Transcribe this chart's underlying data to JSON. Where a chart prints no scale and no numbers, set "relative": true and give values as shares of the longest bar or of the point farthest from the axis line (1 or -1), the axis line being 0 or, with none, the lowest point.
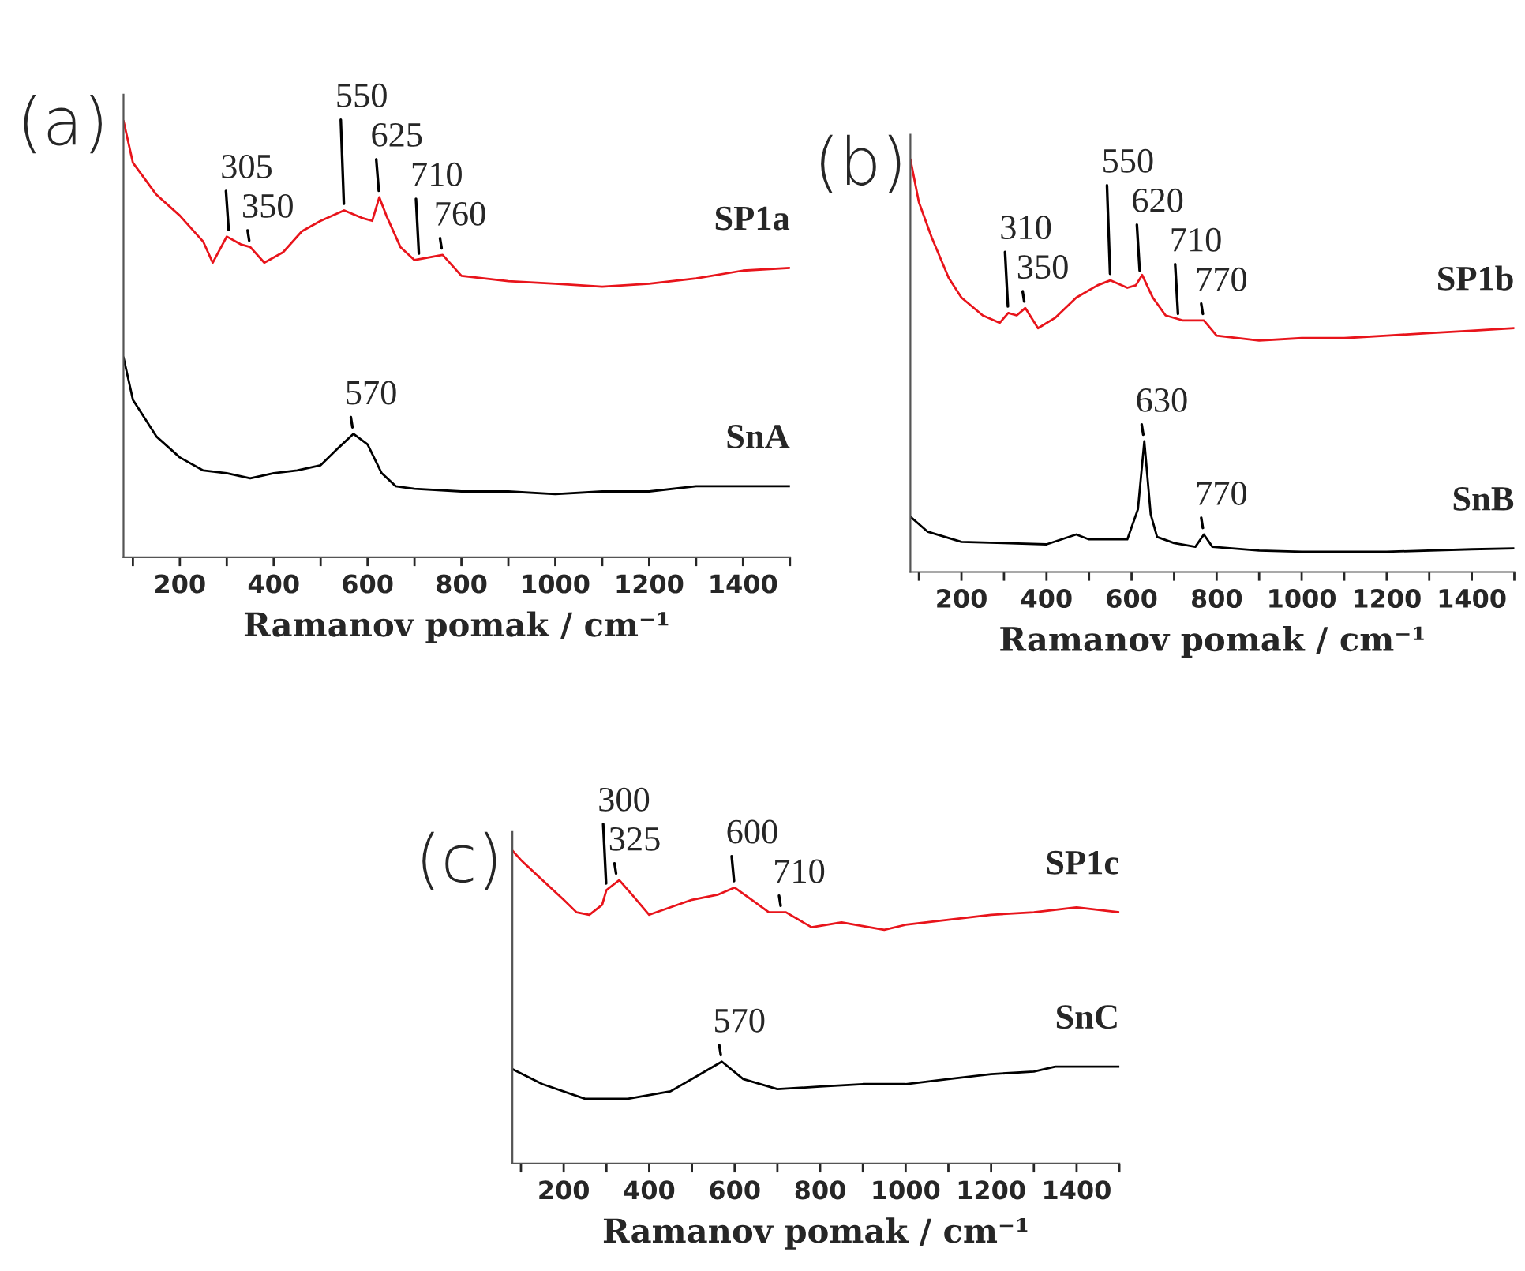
{
  "chart_data": [
    {
      "type": "line",
      "title": "(a)",
      "xlabel": "Ramanov pomak / cm⁻¹",
      "relative": true,
      "xlim": [
        80,
        1500
      ],
      "xticks": [
        {
          "value": 100,
          "label": null
        },
        200,
        {
          "value": 300,
          "label": null
        },
        400,
        {
          "value": 500,
          "label": null
        },
        600,
        {
          "value": 700,
          "label": null
        },
        800,
        {
          "value": 900,
          "label": null
        },
        1000,
        {
          "value": 1100,
          "label": null
        },
        1200,
        {
          "value": 1300,
          "label": null
        },
        1400,
        {
          "value": 1500,
          "label": null
        }
      ],
      "series": [
        {
          "name": "SP1a",
          "color": "#e8141b",
          "x": [
            80,
            100,
            150,
            200,
            250,
            270,
            300,
            330,
            350,
            380,
            420,
            460,
            500,
            550,
            590,
            610,
            625,
            640,
            670,
            700,
            760,
            800,
            900,
            1000,
            1100,
            1200,
            1300,
            1400,
            1500
          ],
          "values": [
            1.0,
            0.904,
            0.831,
            0.783,
            0.723,
            0.675,
            0.735,
            0.717,
            0.711,
            0.675,
            0.699,
            0.747,
            0.771,
            0.795,
            0.777,
            0.771,
            0.825,
            0.783,
            0.711,
            0.681,
            0.693,
            0.645,
            0.633,
            0.627,
            0.62,
            0.627,
            0.639,
            0.657,
            0.663
          ]
        },
        {
          "name": "SnA",
          "color": "#000000",
          "x": [
            80,
            100,
            150,
            200,
            250,
            300,
            350,
            400,
            450,
            500,
            540,
            570,
            600,
            630,
            660,
            700,
            800,
            900,
            1000,
            1100,
            1200,
            1300,
            1400,
            1500
          ],
          "values": [
            0.458,
            0.361,
            0.277,
            0.229,
            0.199,
            0.193,
            0.181,
            0.193,
            0.199,
            0.211,
            0.253,
            0.283,
            0.259,
            0.193,
            0.163,
            0.157,
            0.151,
            0.151,
            0.145,
            0.151,
            0.151,
            0.163,
            0.163,
            0.163
          ]
        }
      ],
      "annotations": [
        {
          "text": "305",
          "x": 305,
          "y": 0.735
        },
        {
          "text": "350",
          "x": 350,
          "y": 0.711
        },
        {
          "text": "550",
          "x": 550,
          "y": 0.795
        },
        {
          "text": "625",
          "x": 625,
          "y": 0.825
        },
        {
          "text": "710",
          "x": 710,
          "y": 0.681
        },
        {
          "text": "760",
          "x": 760,
          "y": 0.693
        },
        {
          "text": "570",
          "x": 570,
          "y": 0.283
        }
      ]
    },
    {
      "type": "line",
      "title": "(b)",
      "xlabel": "Ramanov pomak / cm⁻¹",
      "relative": true,
      "xlim": [
        80,
        1500
      ],
      "xticks": [
        {
          "value": 100,
          "label": null
        },
        200,
        {
          "value": 300,
          "label": null
        },
        400,
        {
          "value": 500,
          "label": null
        },
        600,
        {
          "value": 700,
          "label": null
        },
        800,
        {
          "value": 900,
          "label": null
        },
        1000,
        {
          "value": 1100,
          "label": null
        },
        1200,
        {
          "value": 1300,
          "label": null
        },
        1400,
        {
          "value": 1500,
          "label": null
        }
      ],
      "series": [
        {
          "name": "SP1b",
          "color": "#e8141b",
          "x": [
            80,
            100,
            130,
            170,
            200,
            250,
            290,
            310,
            330,
            350,
            380,
            420,
            470,
            520,
            550,
            590,
            610,
            625,
            650,
            680,
            720,
            770,
            800,
            900,
            1000,
            1100,
            1200,
            1300,
            1400,
            1500
          ],
          "values": [
            1.0,
            0.896,
            0.811,
            0.713,
            0.665,
            0.622,
            0.604,
            0.628,
            0.622,
            0.64,
            0.591,
            0.616,
            0.665,
            0.695,
            0.707,
            0.689,
            0.695,
            0.72,
            0.665,
            0.622,
            0.61,
            0.61,
            0.573,
            0.561,
            0.567,
            0.567,
            0.573,
            0.579,
            0.585,
            0.591
          ]
        },
        {
          "name": "SnB",
          "color": "#000000",
          "x": [
            80,
            120,
            200,
            300,
            400,
            470,
            500,
            590,
            615,
            630,
            645,
            660,
            700,
            750,
            770,
            790,
            900,
            1000,
            1200,
            1400,
            1500
          ],
          "values": [
            0.134,
            0.098,
            0.073,
            0.07,
            0.067,
            0.091,
            0.079,
            0.079,
            0.152,
            0.317,
            0.14,
            0.085,
            0.07,
            0.061,
            0.091,
            0.061,
            0.052,
            0.049,
            0.049,
            0.055,
            0.057
          ]
        }
      ],
      "annotations": [
        {
          "text": "310",
          "x": 310,
          "y": 0.628
        },
        {
          "text": "350",
          "x": 350,
          "y": 0.64
        },
        {
          "text": "550",
          "x": 550,
          "y": 0.707
        },
        {
          "text": "620",
          "x": 620,
          "y": 0.715
        },
        {
          "text": "710",
          "x": 710,
          "y": 0.61
        },
        {
          "text": "770",
          "x": 770,
          "y": 0.61
        },
        {
          "text": "630",
          "x": 630,
          "y": 0.317
        },
        {
          "text": "770",
          "x": 770,
          "y": 0.091
        }
      ]
    },
    {
      "type": "line",
      "title": "(c)",
      "xlabel": "Ramanov pomak / cm⁻¹",
      "relative": true,
      "xlim": [
        80,
        1500
      ],
      "xticks": [
        {
          "value": 100,
          "label": null
        },
        200,
        {
          "value": 300,
          "label": null
        },
        400,
        {
          "value": 500,
          "label": null
        },
        600,
        {
          "value": 700,
          "label": null
        },
        800,
        {
          "value": 900,
          "label": null
        },
        1000,
        {
          "value": 1100,
          "label": null
        },
        1200,
        {
          "value": 1300,
          "label": null
        },
        1400,
        {
          "value": 1500,
          "label": null
        }
      ],
      "series": [
        {
          "name": "SP1c",
          "color": "#e8141b",
          "x": [
            80,
            100,
            150,
            200,
            230,
            260,
            290,
            300,
            330,
            360,
            400,
            450,
            500,
            560,
            600,
            640,
            680,
            720,
            780,
            850,
            950,
            1000,
            1100,
            1200,
            1300,
            1400,
            1500
          ],
          "values": [
            1.0,
            0.97,
            0.906,
            0.843,
            0.803,
            0.795,
            0.827,
            0.874,
            0.906,
            0.859,
            0.795,
            0.819,
            0.843,
            0.859,
            0.882,
            0.843,
            0.803,
            0.803,
            0.755,
            0.771,
            0.747,
            0.763,
            0.779,
            0.795,
            0.803,
            0.819,
            0.803
          ]
        },
        {
          "name": "SnC",
          "color": "#000000",
          "x": [
            80,
            150,
            250,
            350,
            450,
            520,
            570,
            620,
            700,
            800,
            900,
            1000,
            1100,
            1200,
            1300,
            1350,
            1500
          ],
          "values": [
            0.302,
            0.254,
            0.207,
            0.207,
            0.231,
            0.286,
            0.326,
            0.27,
            0.238,
            0.246,
            0.254,
            0.254,
            0.27,
            0.286,
            0.294,
            0.31,
            0.31
          ]
        }
      ],
      "annotations": [
        {
          "text": "300",
          "x": 300,
          "y": 0.874
        },
        {
          "text": "325",
          "x": 325,
          "y": 0.906
        },
        {
          "text": "600",
          "x": 600,
          "y": 0.882
        },
        {
          "text": "710",
          "x": 710,
          "y": 0.803
        },
        {
          "text": "570",
          "x": 570,
          "y": 0.326
        }
      ]
    }
  ]
}
